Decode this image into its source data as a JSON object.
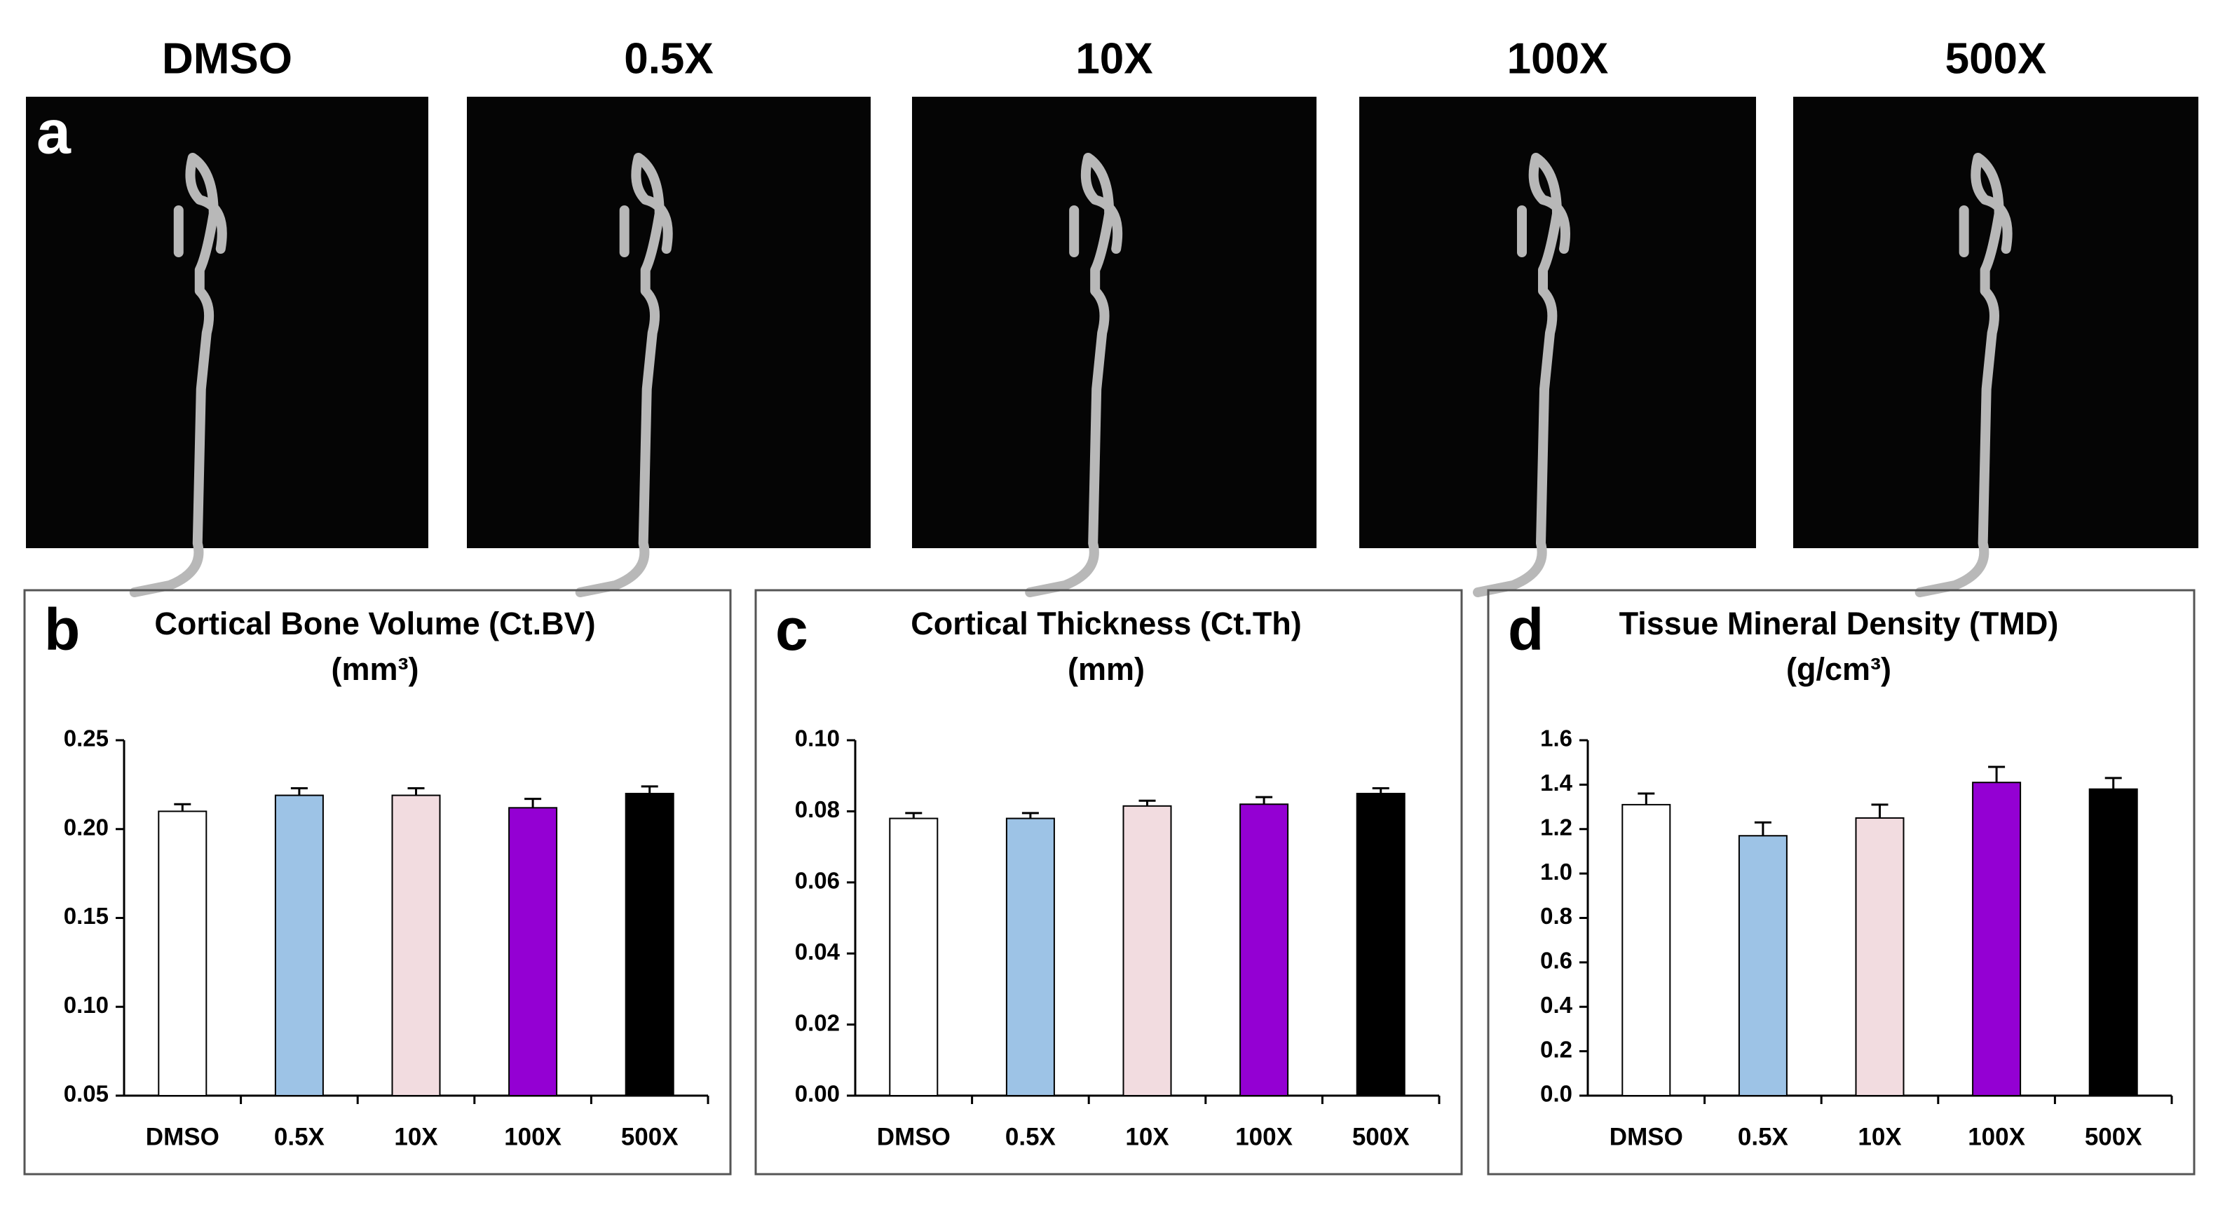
{
  "panel_a": {
    "label": "a",
    "columns": [
      "DMSO",
      "0.5X",
      "10X",
      "100X",
      "500X"
    ]
  },
  "chart_data": [
    {
      "type": "bar",
      "panel_label": "b",
      "title": "Cortical Bone Volume (Ct.BV)",
      "subtitle": "(mm³)",
      "categories": [
        "DMSO",
        "0.5X",
        "10X",
        "100X",
        "500X"
      ],
      "colors": [
        "#ffffff",
        "#9dc3e6",
        "#f2dce0",
        "#9400d3",
        "#000000"
      ],
      "values": [
        0.21,
        0.219,
        0.219,
        0.212,
        0.22
      ],
      "errors": [
        0.004,
        0.004,
        0.004,
        0.005,
        0.004
      ],
      "ylim": [
        0.05,
        0.25
      ],
      "yticks": [
        0.05,
        {
          "value": 0.1,
          "label": "0.10"
        },
        0.15,
        {
          "value": 0.2,
          "label": "0.20"
        },
        0.25
      ]
    },
    {
      "type": "bar",
      "panel_label": "c",
      "title": "Cortical Thickness (Ct.Th)",
      "subtitle": "(mm)",
      "categories": [
        "DMSO",
        "0.5X",
        "10X",
        "100X",
        "500X"
      ],
      "colors": [
        "#ffffff",
        "#9dc3e6",
        "#f2dce0",
        "#9400d3",
        "#000000"
      ],
      "values": [
        0.078,
        0.078,
        0.0815,
        0.082,
        0.085
      ],
      "errors": [
        0.0015,
        0.0015,
        0.0015,
        0.002,
        0.0015
      ],
      "ylim": [
        0,
        0.1
      ],
      "yticks": [
        {
          "value": 0,
          "label": "0.00"
        },
        0.02,
        0.04,
        0.06,
        0.08,
        {
          "value": 0.1,
          "label": "0.10"
        }
      ]
    },
    {
      "type": "bar",
      "panel_label": "d",
      "title": "Tissue Mineral Density (TMD)",
      "subtitle": "(g/cm³)",
      "categories": [
        "DMSO",
        "0.5X",
        "10X",
        "100X",
        "500X"
      ],
      "colors": [
        "#ffffff",
        "#9dc3e6",
        "#f2dce0",
        "#9400d3",
        "#000000"
      ],
      "values": [
        1.31,
        1.17,
        1.25,
        1.41,
        1.38
      ],
      "errors": [
        0.05,
        0.06,
        0.06,
        0.07,
        0.05
      ],
      "ylim": [
        0,
        1.6
      ],
      "yticks": [
        {
          "value": 0,
          "label": "0.0"
        },
        0.2,
        0.4,
        0.6,
        0.8,
        {
          "value": 1,
          "label": "1.0"
        },
        1.2,
        1.4,
        1.6
      ]
    }
  ]
}
